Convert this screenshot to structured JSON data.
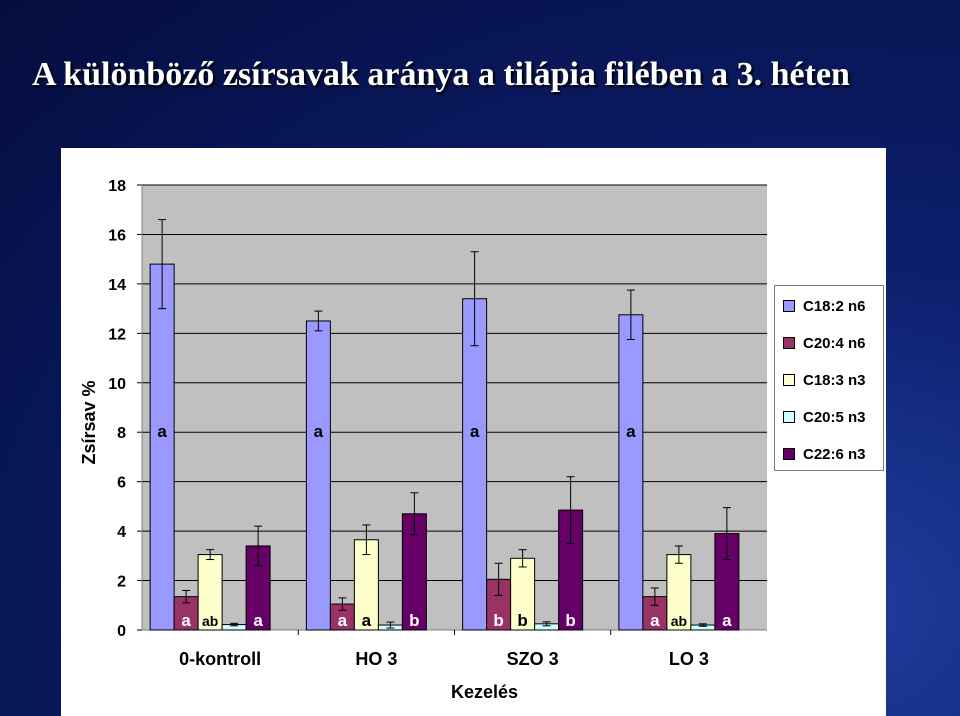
{
  "slide": {
    "title": "A különböző zsírsavak aránya a tilápia filében a 3. héten"
  },
  "chart_data": {
    "type": "bar",
    "xlabel": "Kezelés",
    "ylabel": "Zsírsav %",
    "ylim": [
      0,
      18
    ],
    "yticks": [
      0,
      2,
      4,
      6,
      8,
      10,
      12,
      14,
      16,
      18
    ],
    "grid": true,
    "legend_position": "right",
    "categories": [
      "0-kontroll",
      "HO 3",
      "SZO 3",
      "LO 3"
    ],
    "series": [
      {
        "name": "C18:2 n6",
        "color": "#9999ff",
        "values": [
          14.8,
          12.5,
          13.4,
          12.75
        ],
        "errors": [
          1.8,
          0.4,
          1.9,
          1.0
        ],
        "letters": [
          "a",
          "a",
          "a",
          "a"
        ]
      },
      {
        "name": "C20:4 n6",
        "color": "#993366",
        "values": [
          1.35,
          1.05,
          2.05,
          1.35
        ],
        "errors": [
          0.25,
          0.25,
          0.65,
          0.35
        ],
        "letters": [
          "a",
          "a",
          "b",
          "a"
        ]
      },
      {
        "name": "C18:3 n3",
        "color": "#ffffcc",
        "values": [
          3.05,
          3.65,
          2.9,
          3.05
        ],
        "errors": [
          0.2,
          0.6,
          0.35,
          0.35
        ],
        "letters": [
          "ab",
          "a",
          "b",
          "ab"
        ]
      },
      {
        "name": "C20:5 n3",
        "color": "#ccffff",
        "values": [
          0.22,
          0.2,
          0.25,
          0.2
        ],
        "errors": [
          0.05,
          0.12,
          0.08,
          0.05
        ],
        "letters": []
      },
      {
        "name": "C22:6 n3",
        "color": "#660066",
        "values": [
          3.4,
          4.7,
          4.85,
          3.9
        ],
        "errors": [
          0.8,
          0.85,
          1.35,
          1.05
        ],
        "letters": [
          "a",
          "b",
          "b",
          "a"
        ]
      }
    ]
  }
}
